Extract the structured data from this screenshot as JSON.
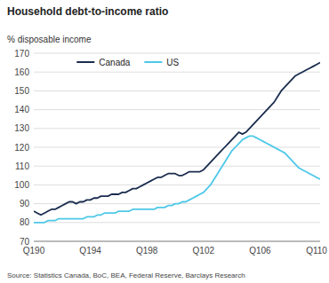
{
  "chart_data": {
    "type": "line",
    "title": "Household debt-to-income ratio",
    "ylabel": "% disposable income",
    "source": "Source: Statistics Canada, BoC, BEA, Federal Reserve, Barclays Research",
    "categories": [
      "Q190",
      null,
      null,
      null,
      null,
      null,
      null,
      null,
      null,
      null,
      null,
      null,
      null,
      null,
      null,
      null,
      "Q194",
      null,
      null,
      null,
      null,
      null,
      null,
      null,
      null,
      null,
      null,
      null,
      null,
      null,
      null,
      null,
      "Q198",
      null,
      null,
      null,
      null,
      null,
      null,
      null,
      null,
      null,
      null,
      null,
      null,
      null,
      null,
      null,
      "Q102",
      null,
      null,
      null,
      null,
      null,
      null,
      null,
      null,
      null,
      null,
      null,
      null,
      null,
      null,
      null,
      "Q106",
      null,
      null,
      null,
      null,
      null,
      null,
      null,
      null,
      null,
      null,
      null,
      null,
      null,
      null,
      null,
      "Q110",
      null
    ],
    "series": [
      {
        "name": "Canada",
        "color": "#1a2c4e",
        "values": [
          86,
          85,
          84,
          85,
          86,
          87,
          87,
          88,
          89,
          90,
          91,
          91,
          90,
          91,
          91,
          92,
          92,
          93,
          93,
          94,
          94,
          94,
          95,
          95,
          95,
          96,
          96,
          97,
          98,
          98,
          99,
          100,
          101,
          102,
          103,
          104,
          104,
          105,
          106,
          106,
          106,
          105,
          105,
          106,
          107,
          107,
          107,
          107,
          108,
          110,
          112,
          114,
          116,
          118,
          120,
          122,
          124,
          126,
          128,
          127,
          128,
          130,
          132,
          134,
          136,
          138,
          140,
          142,
          144,
          147,
          150,
          152,
          154,
          156,
          158,
          159,
          160,
          161,
          162,
          163,
          164,
          165
        ]
      },
      {
        "name": "US",
        "color": "#4dc8e8",
        "values": [
          80,
          80,
          80,
          80,
          81,
          81,
          81,
          82,
          82,
          82,
          82,
          82,
          82,
          82,
          82,
          83,
          83,
          83,
          84,
          84,
          85,
          85,
          85,
          85,
          86,
          86,
          86,
          86,
          87,
          87,
          87,
          87,
          87,
          87,
          87,
          88,
          88,
          88,
          89,
          89,
          90,
          90,
          91,
          91,
          92,
          93,
          94,
          95,
          96,
          98,
          100,
          103,
          106,
          109,
          112,
          115,
          118,
          120,
          122,
          124,
          125,
          126,
          126,
          125,
          124,
          123,
          122,
          121,
          120,
          119,
          118,
          117,
          115,
          113,
          111,
          109,
          108,
          107,
          106,
          105,
          104,
          103
        ]
      }
    ],
    "ylim": [
      70,
      170
    ],
    "yticks": [
      70,
      80,
      90,
      100,
      110,
      120,
      130,
      140,
      150,
      160,
      170
    ],
    "grid": true,
    "legend": "upper left"
  }
}
